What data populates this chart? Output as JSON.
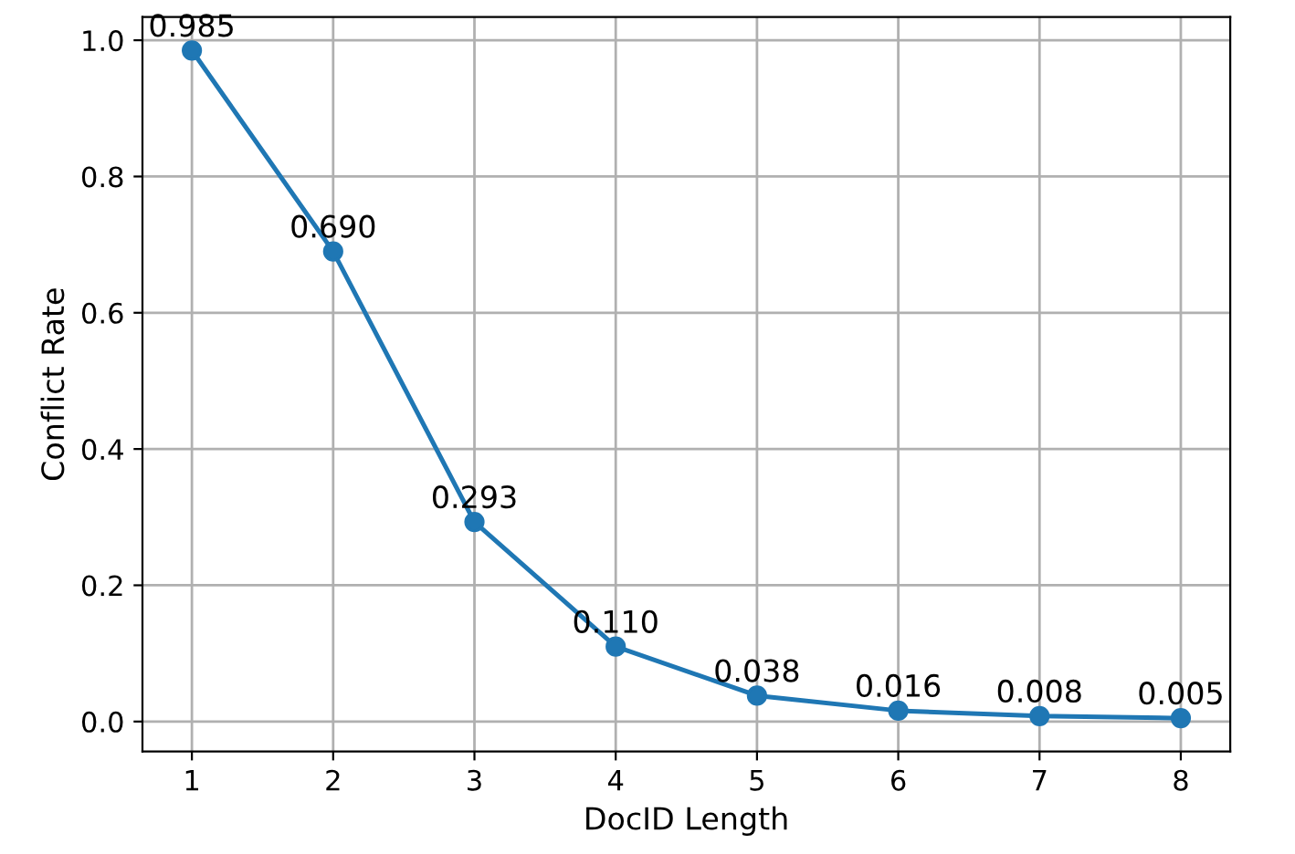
{
  "chart_data": {
    "type": "line",
    "xlabel": "DocID Length",
    "ylabel": "Conflict Rate",
    "x": [
      1,
      2,
      3,
      4,
      5,
      6,
      7,
      8
    ],
    "series": [
      {
        "color": "#1f77b4",
        "values": [
          0.985,
          0.69,
          0.293,
          0.11,
          0.038,
          0.016,
          0.008,
          0.005
        ],
        "value_labels": [
          "0.985",
          "0.690",
          "0.293",
          "0.110",
          "0.038",
          "0.016",
          "0.008",
          "0.005"
        ]
      }
    ],
    "xlim": [
      0.65,
      8.35
    ],
    "xticks": [
      1,
      2,
      3,
      4,
      5,
      6,
      7,
      8
    ],
    "ylim": [
      -0.044,
      1.034
    ],
    "yticks": [
      {
        "value": 0,
        "label": "0.0"
      },
      {
        "value": 0.2,
        "label": "0.2"
      },
      {
        "value": 0.4,
        "label": "0.4"
      },
      {
        "value": 0.6,
        "label": "0.6"
      },
      {
        "value": 0.8,
        "label": "0.8"
      },
      {
        "value": 1,
        "label": "1.0"
      }
    ],
    "grid": true,
    "marker": "circle",
    "line_style": "solid"
  }
}
